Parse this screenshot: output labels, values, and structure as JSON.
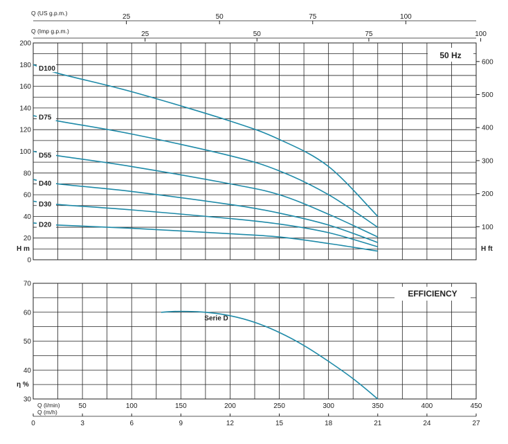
{
  "chart_data": [
    {
      "type": "line",
      "badge": "50 Hz",
      "left_axis_label": "H m",
      "right_axis_label": "H ft",
      "top_axis_1_label": "Q (US g.p.m.)",
      "top_axis_2_label": "Q (Imp g.p.m.)",
      "left_ticks": [
        0,
        10,
        20,
        30,
        40,
        50,
        60,
        70,
        80,
        90,
        100,
        110,
        120,
        130,
        140,
        150,
        160,
        170,
        180,
        190,
        200
      ],
      "left_tick_labels": [
        "0",
        "",
        "20",
        "",
        "40",
        "",
        "60",
        "",
        "80",
        "",
        "100",
        "",
        "120",
        "",
        "140",
        "",
        "160",
        "",
        "180",
        "",
        "200"
      ],
      "right_ticks": [
        100,
        200,
        300,
        400,
        500,
        600
      ],
      "us_gpm_ticks": [
        25,
        50,
        75,
        100
      ],
      "imp_gpm_ticks": [
        25,
        50,
        75,
        100
      ],
      "ylim": [
        0,
        200
      ],
      "xlim": [
        0,
        450
      ],
      "color": "#1e8aa8",
      "series": [
        {
          "name": "D100",
          "label_value": 175,
          "shutoff": 180,
          "x": [
            0,
            25,
            100,
            200,
            250,
            300,
            350
          ],
          "y": [
            180,
            172,
            155,
            128,
            111,
            86,
            40
          ]
        },
        {
          "name": "D75",
          "label_value": 130,
          "shutoff": 133,
          "x": [
            0,
            25,
            100,
            200,
            250,
            300,
            350
          ],
          "y": [
            133,
            128,
            116,
            96,
            82,
            60,
            30
          ]
        },
        {
          "name": "D55",
          "label_value": 95,
          "shutoff": 100,
          "x": [
            0,
            25,
            100,
            200,
            250,
            300,
            350
          ],
          "y": [
            100,
            96,
            86,
            70,
            60,
            42,
            21
          ]
        },
        {
          "name": "D40",
          "label_value": 69,
          "shutoff": 74,
          "x": [
            0,
            25,
            100,
            200,
            250,
            300,
            350
          ],
          "y": [
            74,
            70,
            63,
            51,
            43,
            32,
            16
          ]
        },
        {
          "name": "D30",
          "label_value": 50,
          "shutoff": 54,
          "x": [
            0,
            25,
            100,
            200,
            250,
            300,
            350
          ],
          "y": [
            54,
            51,
            46,
            38,
            33,
            25,
            12
          ]
        },
        {
          "name": "D20",
          "label_value": 31,
          "shutoff": 34,
          "x": [
            0,
            25,
            100,
            200,
            250,
            300,
            350
          ],
          "y": [
            34,
            32,
            29,
            24,
            21,
            15,
            8
          ]
        }
      ]
    },
    {
      "type": "line",
      "badge": "EFFICIENCY",
      "y_axis_label": "η %",
      "x_axis_1_label": "Q (l/min)",
      "x_axis_2_label": "Q (m/h)",
      "x_ticks": [
        50,
        100,
        150,
        200,
        250,
        300,
        350,
        400,
        450
      ],
      "m3h_ticks": [
        0,
        3,
        6,
        9,
        12,
        15,
        18,
        21,
        24,
        27
      ],
      "y_ticks": [
        30,
        40,
        50,
        60,
        70
      ],
      "ylim": [
        30,
        70
      ],
      "xlim": [
        0,
        450
      ],
      "color": "#1e8aa8",
      "series": [
        {
          "name": "Serie D",
          "x": [
            130,
            150,
            175,
            200,
            225,
            250,
            275,
            300,
            325,
            350
          ],
          "y": [
            60,
            60.3,
            60,
            58.8,
            56.5,
            53,
            48.5,
            43,
            37,
            30
          ]
        }
      ]
    }
  ]
}
